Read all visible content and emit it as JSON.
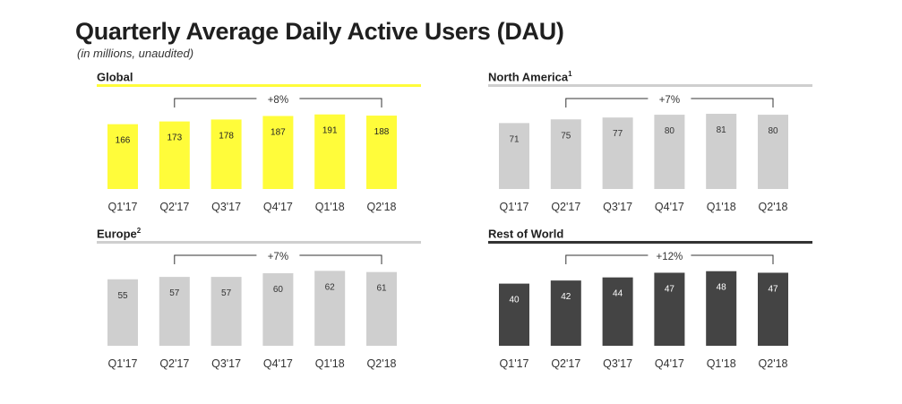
{
  "page": {
    "title": "Quarterly Average Daily Active Users (DAU)",
    "subtitle": "(in millions, unaudited)"
  },
  "chart_data": [
    {
      "type": "bar",
      "title": "Global",
      "title_sup": "",
      "categories": [
        "Q1'17",
        "Q2'17",
        "Q3'17",
        "Q4'17",
        "Q1'18",
        "Q2'18"
      ],
      "values": [
        166,
        173,
        178,
        187,
        191,
        188
      ],
      "growth_label": "+8%",
      "growth_span": [
        "Q2'17",
        "Q2'18"
      ],
      "bar_color": "#FFFC3A",
      "header_rule_color": "#FFFC3A",
      "value_label_color": "#222222",
      "ylim": [
        0,
        195
      ],
      "grid": false,
      "legend": false
    },
    {
      "type": "bar",
      "title": "North America",
      "title_sup": "1",
      "categories": [
        "Q1'17",
        "Q2'17",
        "Q3'17",
        "Q4'17",
        "Q1'18",
        "Q2'18"
      ],
      "values": [
        71,
        75,
        77,
        80,
        81,
        80
      ],
      "growth_label": "+7%",
      "growth_span": [
        "Q2'17",
        "Q2'18"
      ],
      "bar_color": "#CFCFCF",
      "header_rule_color": "#CFCFCF",
      "value_label_color": "#333333",
      "ylim": [
        0,
        82
      ],
      "grid": false,
      "legend": false
    },
    {
      "type": "bar",
      "title": "Europe",
      "title_sup": "2",
      "categories": [
        "Q1'17",
        "Q2'17",
        "Q3'17",
        "Q4'17",
        "Q1'18",
        "Q2'18"
      ],
      "values": [
        55,
        57,
        57,
        60,
        62,
        61
      ],
      "growth_label": "+7%",
      "growth_span": [
        "Q2'17",
        "Q2'18"
      ],
      "bar_color": "#CFCFCF",
      "header_rule_color": "#CFCFCF",
      "value_label_color": "#333333",
      "ylim": [
        0,
        63
      ],
      "grid": false,
      "legend": false
    },
    {
      "type": "bar",
      "title": "Rest of World",
      "title_sup": "",
      "categories": [
        "Q1'17",
        "Q2'17",
        "Q3'17",
        "Q4'17",
        "Q1'18",
        "Q2'18"
      ],
      "values": [
        40,
        42,
        44,
        47,
        48,
        47
      ],
      "growth_label": "+12%",
      "growth_span": [
        "Q2'17",
        "Q2'18"
      ],
      "bar_color": "#444444",
      "header_rule_color": "#333333",
      "value_label_color": "#ffffff",
      "ylim": [
        0,
        49
      ],
      "grid": false,
      "legend": false
    }
  ]
}
